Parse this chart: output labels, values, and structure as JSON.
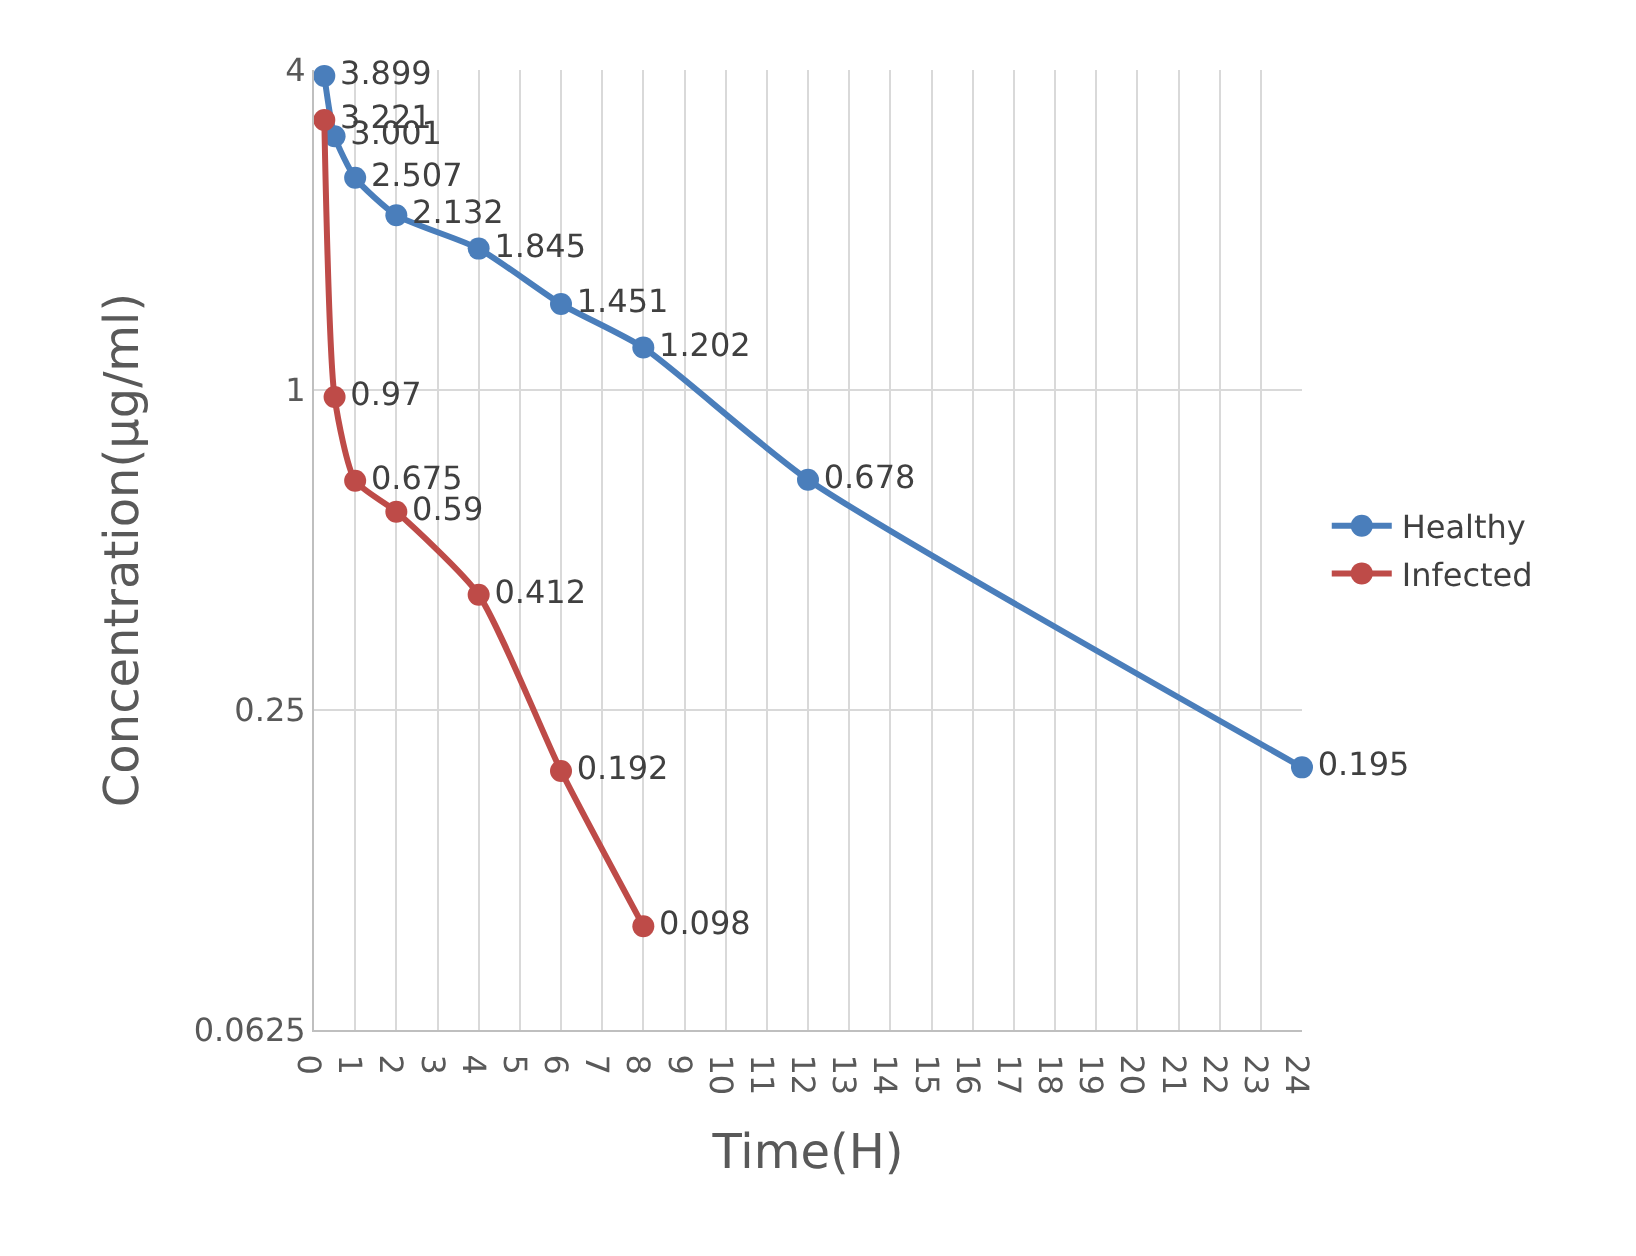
{
  "chart_data": {
    "type": "line",
    "xlabel": "Time(H)",
    "ylabel": "Concentration(µg/ml)",
    "xlim": [
      0,
      24
    ],
    "xticks": [
      0,
      1,
      2,
      3,
      4,
      5,
      6,
      7,
      8,
      9,
      10,
      11,
      12,
      13,
      14,
      15,
      16,
      17,
      18,
      19,
      20,
      21,
      22,
      23,
      24
    ],
    "ylim": [
      0.0625,
      4
    ],
    "yticks": [
      0.0625,
      0.25,
      1,
      4
    ],
    "log": "y",
    "grid": true,
    "legend": "right",
    "marker": "circle",
    "line_style": "solid",
    "data_labels": true,
    "series": [
      {
        "name": "Healthy",
        "color": "#4a7ebb",
        "x": [
          0.25,
          0.5,
          1,
          2,
          4,
          6,
          8,
          12,
          24
        ],
        "values": [
          3.899,
          3.001,
          2.507,
          2.132,
          1.845,
          1.451,
          1.202,
          0.678,
          0.195
        ]
      },
      {
        "name": "Infected",
        "color": "#be4b48",
        "x": [
          0.25,
          0.5,
          1,
          2,
          4,
          6,
          8
        ],
        "values": [
          3.221,
          0.97,
          0.675,
          0.59,
          0.412,
          0.192,
          0.098
        ]
      }
    ]
  }
}
